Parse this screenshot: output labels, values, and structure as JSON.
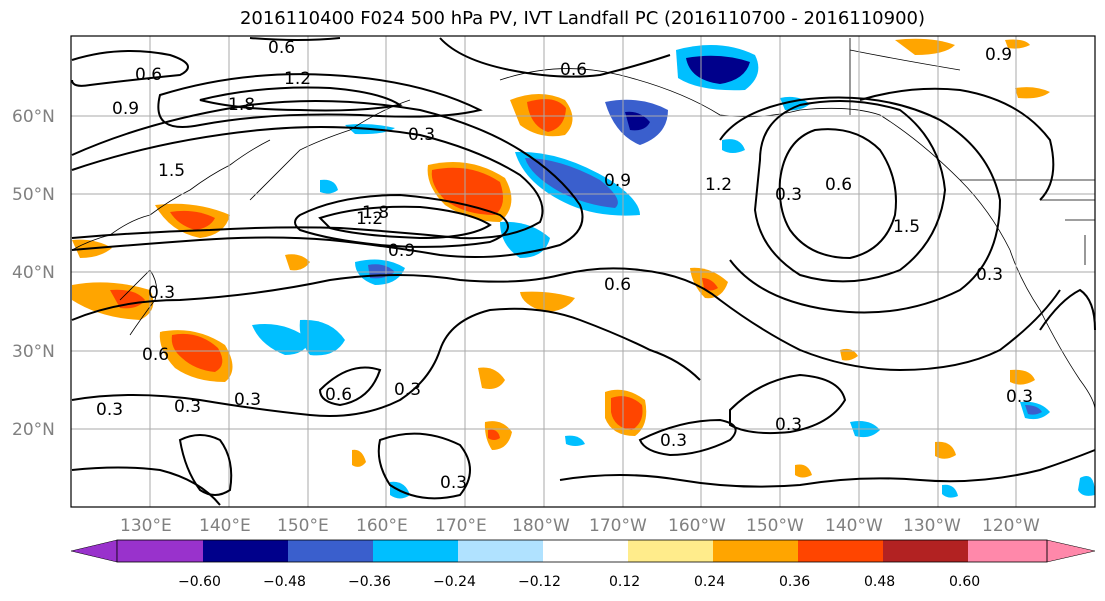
{
  "title": "2016110400 F024 500 hPa PV, IVT Landfall PC (2016110700 - 2016110900)",
  "lat_labels": [
    "60°N",
    "50°N",
    "40°N",
    "30°N",
    "20°N"
  ],
  "lon_labels": [
    "130°E",
    "140°E",
    "150°E",
    "160°E",
    "170°E",
    "180°W",
    "170°W",
    "160°W",
    "150°W",
    "140°W",
    "130°W",
    "120°W"
  ],
  "contour_labels": [
    "0.6",
    "1.2",
    "1.8",
    "0.9",
    "1.5",
    "0.3",
    "0.6",
    "0.3",
    "1.2",
    "0.9",
    "0.3",
    "0.6",
    "1.5",
    "1.8",
    "1.2",
    "0.9",
    "0.6",
    "0.3",
    "0.6",
    "0.3",
    "0.3",
    "0.6",
    "0.3",
    "0.3",
    "0.3",
    "0.3",
    "0.3",
    "0.6",
    "0.9",
    "0.3"
  ],
  "colorbar": {
    "ticks": [
      "−0.60",
      "−0.48",
      "−0.36",
      "−0.24",
      "−0.12",
      "0.12",
      "0.24",
      "0.36",
      "0.48",
      "0.60"
    ],
    "colors": [
      "#9932cc",
      "#00008b",
      "#3a5fcd",
      "#00bfff",
      "#b0e2ff",
      "#ffffff",
      "#ffec8b",
      "#ffa500",
      "#ff4500",
      "#b22222",
      "#ff88aa"
    ]
  }
}
